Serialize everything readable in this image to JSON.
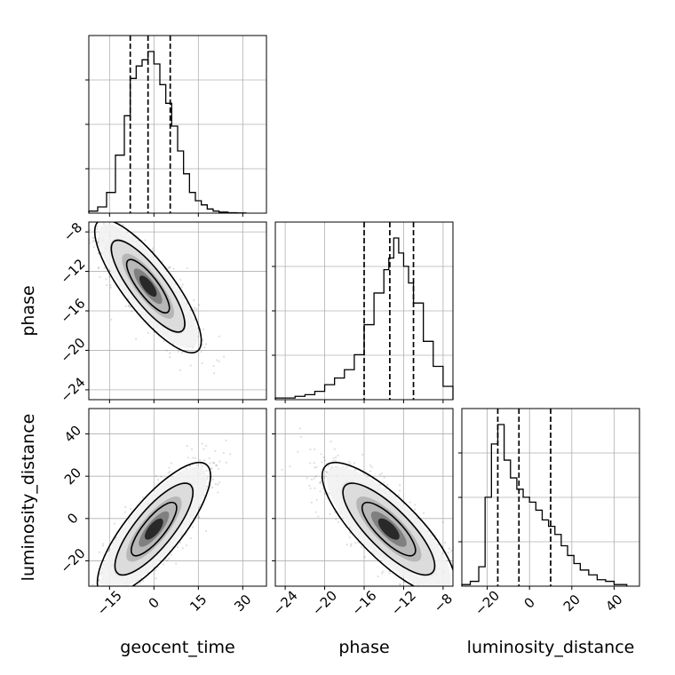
{
  "chart_data": {
    "type": "corner",
    "parameters": [
      "geocent_time",
      "phase",
      "luminosity_distance"
    ],
    "axis_labels": {
      "geocent_time": "geocent_time",
      "phase": "phase",
      "luminosity_distance": "luminosity_distance"
    },
    "ranges": {
      "geocent_time": [
        -22,
        38
      ],
      "phase": [
        -25,
        -7
      ],
      "luminosity_distance": [
        -32,
        52
      ]
    },
    "ticks": {
      "geocent_time": [
        -15,
        0,
        15,
        30
      ],
      "phase": [
        -24,
        -20,
        -16,
        -12,
        -8
      ],
      "luminosity_distance": [
        -20,
        0,
        20,
        40
      ]
    },
    "tick_labels": {
      "geocent_time": [
        "−15",
        "0",
        "15",
        "30"
      ],
      "phase": [
        "−24",
        "−20",
        "−16",
        "−12",
        "−8"
      ],
      "luminosity_distance": [
        "−20",
        "0",
        "20",
        "40"
      ]
    },
    "grid": true,
    "quantiles": {
      "geocent_time": [
        -8,
        -2,
        5.5
      ],
      "phase": [
        -16,
        -13.4,
        -11
      ],
      "luminosity_distance": [
        -15,
        -5,
        10
      ]
    },
    "histograms": {
      "geocent_time": {
        "bin_edges": [
          -22,
          -19,
          -16,
          -13,
          -10,
          -8,
          -6,
          -4,
          -2,
          0,
          2,
          4,
          6,
          8,
          10,
          12,
          14,
          16,
          18,
          20,
          22,
          25,
          28,
          31
        ],
        "counts": [
          1,
          3,
          10,
          28,
          47,
          65,
          71,
          74,
          78,
          72,
          62,
          53,
          42,
          30,
          19,
          10,
          6,
          4,
          2,
          1,
          0.5,
          0.2,
          0.1
        ]
      },
      "phase": {
        "bin_edges": [
          -25,
          -24,
          -23,
          -22,
          -21,
          -20,
          -19,
          -18,
          -17,
          -16,
          -15,
          -14,
          -13.5,
          -13,
          -12.5,
          -12,
          -11.5,
          -11,
          -10,
          -9,
          -8,
          -7
        ],
        "counts": [
          1,
          1,
          2,
          3,
          5,
          9,
          13,
          18,
          27,
          45,
          64,
          78,
          85,
          97,
          88,
          80,
          70,
          58,
          35,
          20,
          8
        ]
      },
      "luminosity_distance": {
        "bin_edges": [
          -32,
          -28,
          -24,
          -21,
          -18,
          -15,
          -12,
          -9,
          -6,
          -3,
          0,
          3,
          6,
          9,
          12,
          15,
          18,
          21,
          24,
          28,
          32,
          36,
          40,
          46
        ],
        "counts": [
          1,
          3,
          12,
          55,
          88,
          100,
          78,
          67,
          60,
          55,
          52,
          47,
          41,
          37,
          32,
          25,
          19,
          14,
          10,
          7,
          4,
          3,
          1
        ]
      }
    },
    "scatter": [
      {
        "x": "geocent_time",
        "y": "phase",
        "center": [
          -2,
          -13.5
        ],
        "sigma": [
          8,
          3
        ],
        "correlation": -0.82
      },
      {
        "x": "geocent_time",
        "y": "luminosity_distance",
        "center": [
          0,
          -5
        ],
        "sigma": [
          8.5,
          14
        ],
        "correlation": 0.8
      },
      {
        "x": "phase",
        "y": "luminosity_distance",
        "center": [
          -13.5,
          -5
        ],
        "sigma": [
          3,
          14
        ],
        "correlation": -0.8
      }
    ]
  }
}
